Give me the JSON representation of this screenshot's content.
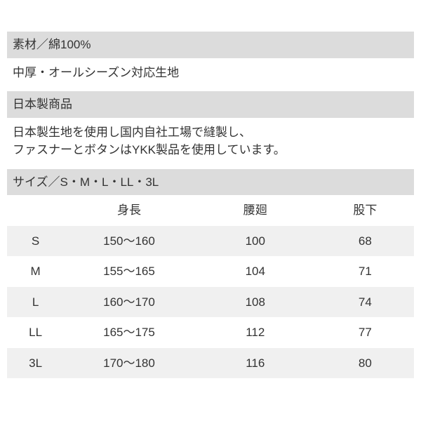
{
  "colors": {
    "header_bg": "#dcdcdc",
    "row_odd_bg": "#f0f0f0",
    "row_even_bg": "#ffffff",
    "text": "#333333",
    "page_bg": "#ffffff"
  },
  "typography": {
    "font_size_pt": 13,
    "font_family": "Hiragino Kaku Gothic ProN"
  },
  "sections": {
    "material": {
      "header": "素材／綿100%",
      "body": "中厚・オールシーズン対応生地"
    },
    "origin": {
      "header": "日本製商品",
      "body_line1": "日本製生地を使用し国内自社工場で縫製し、",
      "body_line2": "ファスナーとボタンはYKK製品を使用しています。"
    },
    "size": {
      "header": "サイズ／S・M・L・LL・3L"
    }
  },
  "size_table": {
    "type": "table",
    "columns": [
      {
        "key": "size",
        "label": "",
        "width_pct": 14,
        "align": "center"
      },
      {
        "key": "height",
        "label": "身長",
        "width_pct": 32,
        "align": "center"
      },
      {
        "key": "waist",
        "label": "腰廻",
        "width_pct": 30,
        "align": "center"
      },
      {
        "key": "inseam",
        "label": "股下",
        "width_pct": 24,
        "align": "center"
      }
    ],
    "rows": [
      {
        "size": "S",
        "height": "150～160",
        "waist": "100",
        "inseam": "68"
      },
      {
        "size": "M",
        "height": "155～165",
        "waist": "104",
        "inseam": "71"
      },
      {
        "size": "L",
        "height": "160～170",
        "waist": "108",
        "inseam": "74"
      },
      {
        "size": "LL",
        "height": "165～175",
        "waist": "112",
        "inseam": "77"
      },
      {
        "size": "3L",
        "height": "170～180",
        "waist": "116",
        "inseam": "80"
      }
    ]
  }
}
